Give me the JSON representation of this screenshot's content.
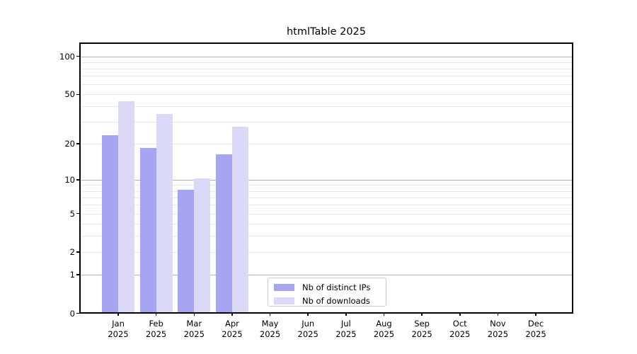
{
  "chart_data": {
    "type": "bar",
    "title": "htmlTable 2025",
    "categories": [
      "Jan",
      "Feb",
      "Mar",
      "Apr",
      "May",
      "Jun",
      "Jul",
      "Aug",
      "Sep",
      "Oct",
      "Nov",
      "Dec"
    ],
    "x_year_label": "2025",
    "series": [
      {
        "name": "Nb of distinct IPs",
        "color": "#a5a5f2",
        "values": [
          23,
          18,
          8,
          16,
          0,
          0,
          0,
          0,
          0,
          0,
          0,
          0
        ]
      },
      {
        "name": "Nb of downloads",
        "color": "#dadaf8",
        "values": [
          43,
          34,
          10,
          27,
          0,
          0,
          0,
          0,
          0,
          0,
          0,
          0
        ]
      }
    ],
    "xlabel": "",
    "ylabel": "",
    "yscale": "log10(1+x)",
    "ylim": [
      0,
      130
    ],
    "y_tick_labels": [
      0,
      1,
      2,
      5,
      10,
      20,
      50,
      100
    ],
    "y_major_gridlines": [
      1,
      10,
      100
    ],
    "y_minor_gridlines": [
      2,
      3,
      4,
      5,
      6,
      7,
      8,
      9,
      20,
      30,
      40,
      50,
      60,
      70,
      80,
      90
    ],
    "grid": true,
    "legend": {
      "position": "lower center inside",
      "entries": [
        "Nb of distinct IPs",
        "Nb of downloads"
      ]
    },
    "colors": {
      "major_grid": "#b3b3b3",
      "minor_grid": "#e8e8e8",
      "spine": "#000000",
      "text": "#000000",
      "legend_border": "#cccccc"
    }
  }
}
